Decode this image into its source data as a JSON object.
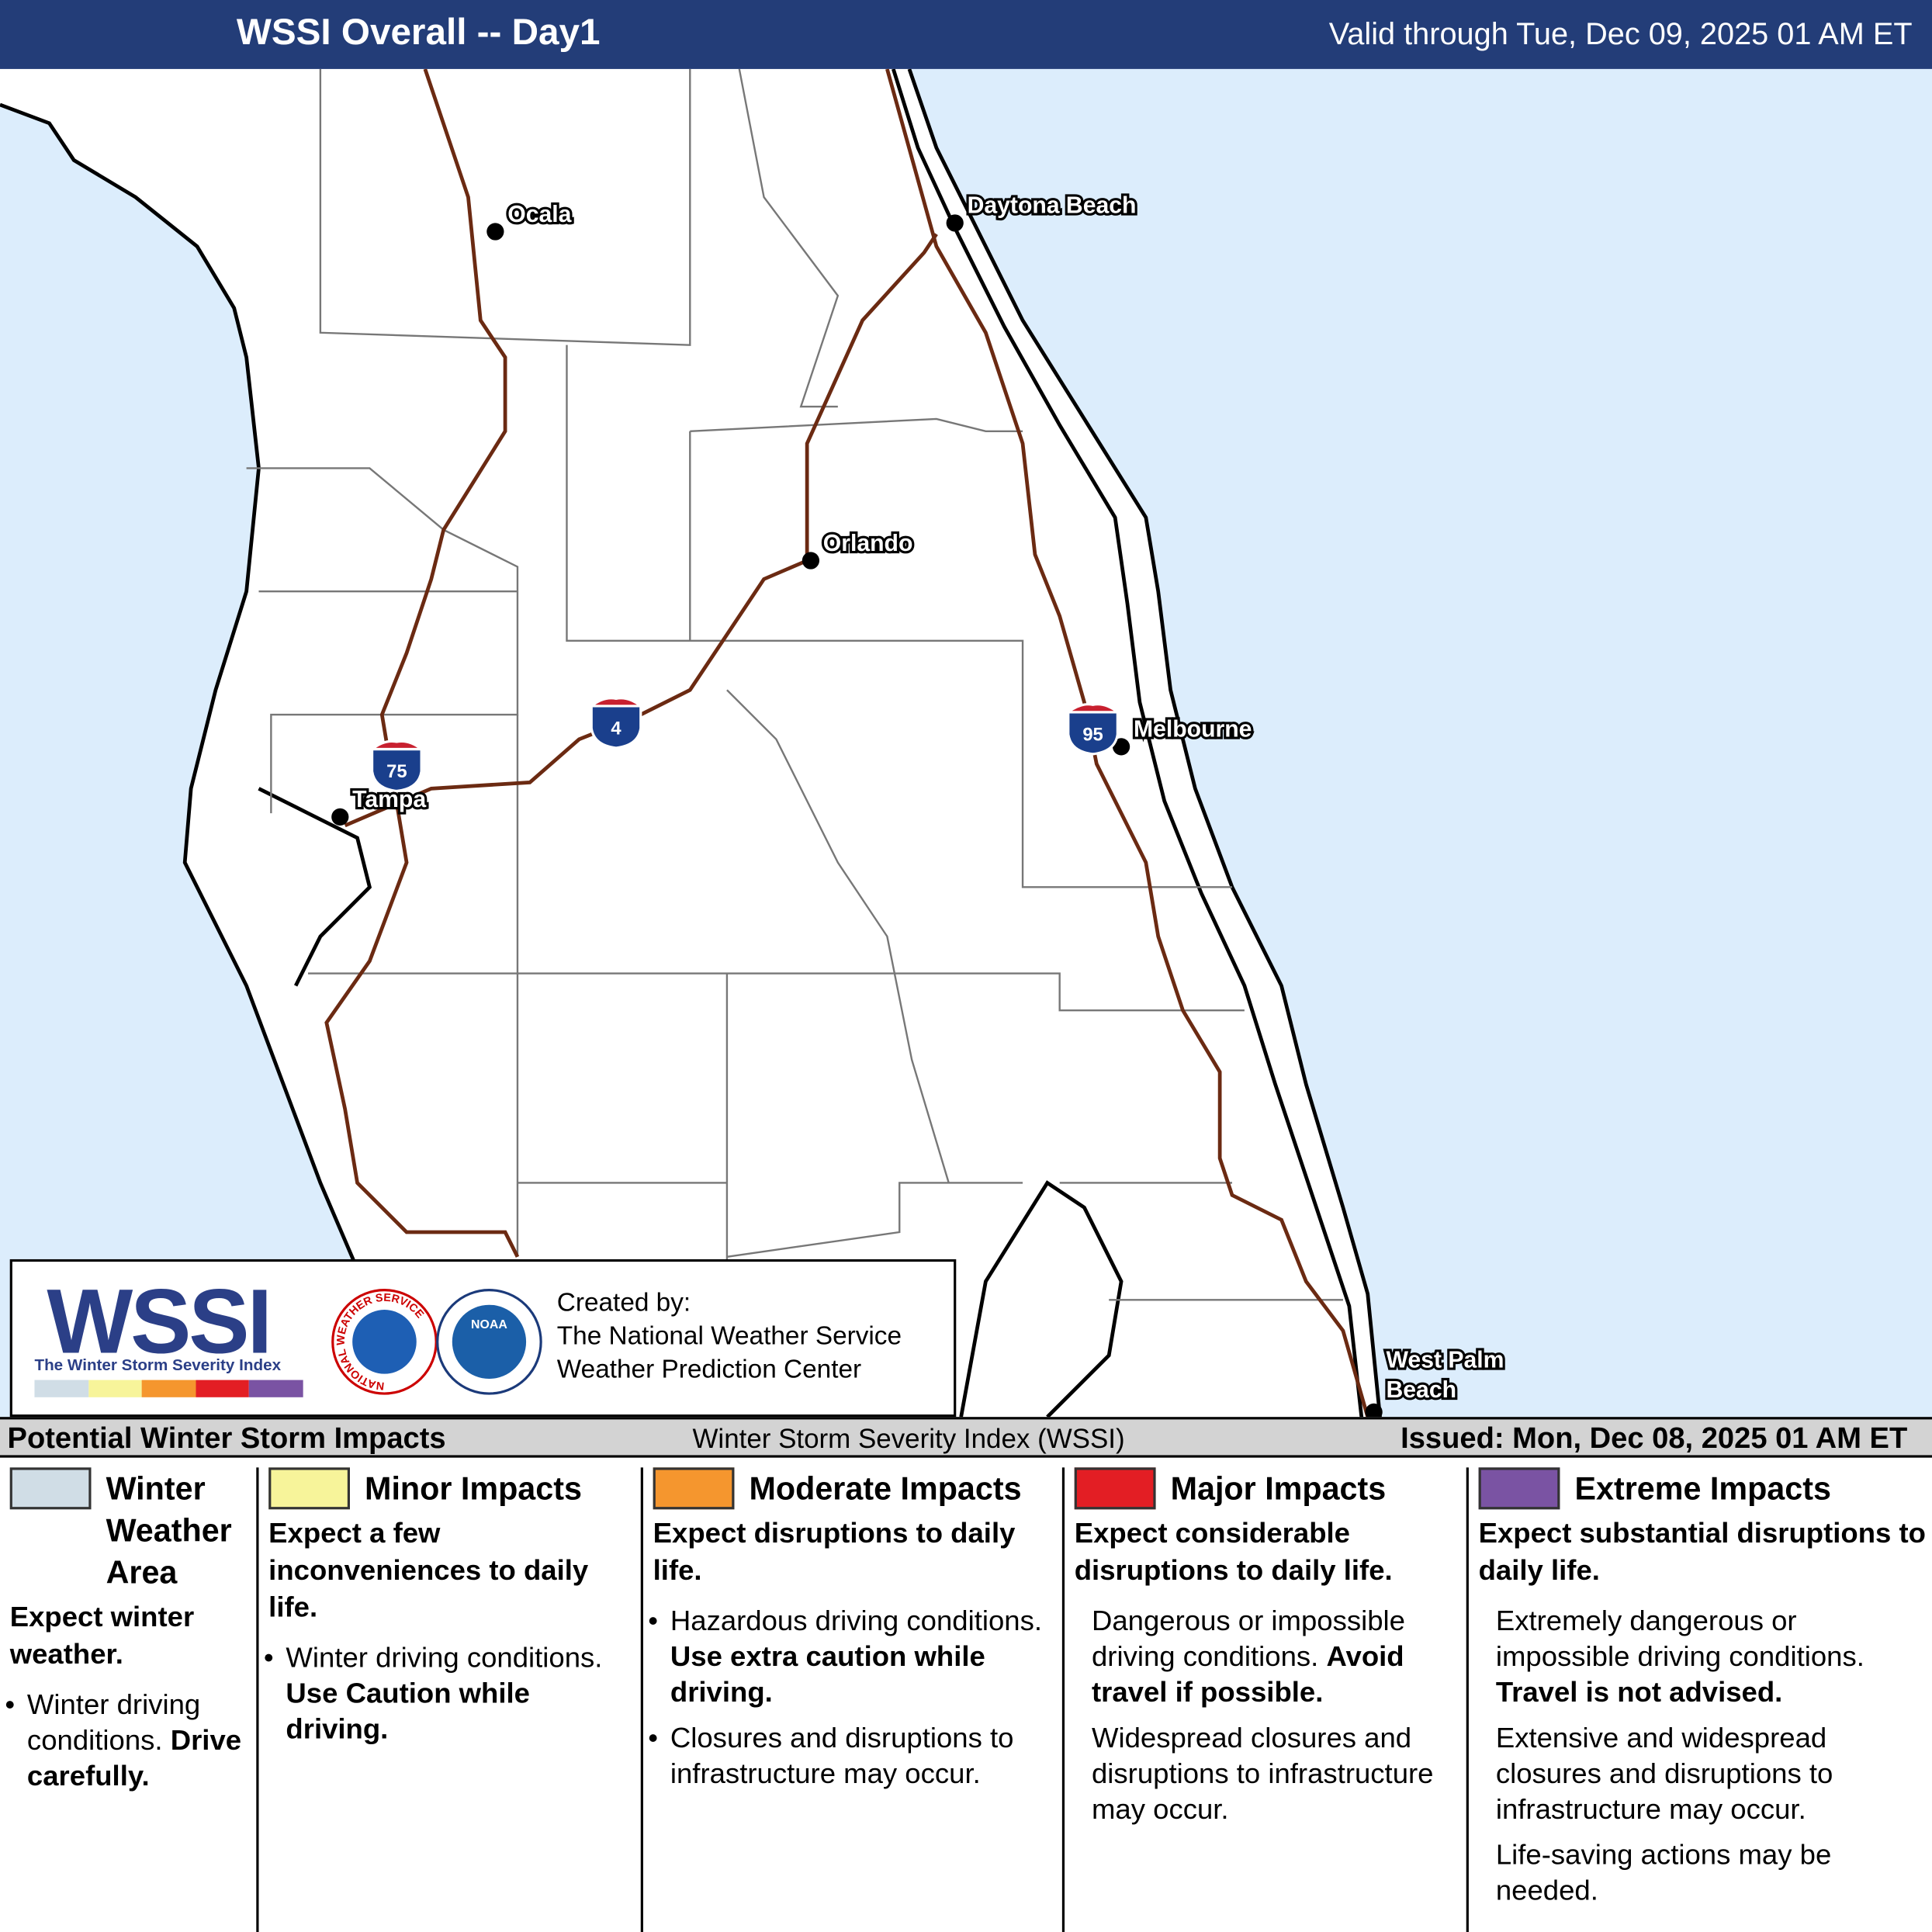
{
  "header": {
    "title": "WSSI Overall -- Day1",
    "valid": "Valid through Tue, Dec 09, 2025 01 AM ET"
  },
  "map": {
    "cities": [
      {
        "lines": [
          "Ocala"
        ]
      },
      {
        "lines": [
          "Daytona Beach"
        ]
      },
      {
        "lines": [
          "Orlando"
        ]
      },
      {
        "lines": [
          "Melbourne"
        ]
      },
      {
        "lines": [
          "Tampa"
        ]
      },
      {
        "lines": [
          "West Palm",
          "Beach"
        ]
      }
    ],
    "interstates": [
      "75",
      "4",
      "95"
    ]
  },
  "credits": {
    "logo": "WSSI",
    "logo_subtitle": "The Winter Storm Severity Index",
    "nws_seal": "NATIONAL WEATHER SERVICE",
    "noaa_seal": "NOAA",
    "lines": [
      "Created by:",
      "The National Weather Service",
      "Weather Prediction Center"
    ]
  },
  "legend": {
    "title": "Potential Winter Storm Impacts",
    "subtitle": "Winter Storm Severity Index (WSSI)",
    "issued": "Issued: Mon, Dec 08, 2025 01 AM ET",
    "columns": [
      {
        "title": "Winter Weather Area",
        "color": "#d0dde6",
        "summary": "Expect winter weather.",
        "bulleted": true,
        "items": [
          {
            "text": "Winter driving conditions.",
            "bold": "Drive carefully."
          }
        ]
      },
      {
        "title": "Minor Impacts",
        "color": "#f7f49a",
        "summary": "Expect a few inconveniences to daily life.",
        "bulleted": true,
        "items": [
          {
            "text": "Winter driving conditions.",
            "bold": "Use Caution while driving."
          }
        ]
      },
      {
        "title": "Moderate Impacts",
        "color": "#f5962e",
        "summary": "Expect disruptions to daily life.",
        "bulleted": true,
        "items": [
          {
            "text": "Hazardous driving conditions.",
            "bold": "Use extra caution while driving."
          },
          {
            "text": "Closures and disruptions to infrastructure may occur."
          }
        ]
      },
      {
        "title": "Major Impacts",
        "color": "#e31e24",
        "summary": "Expect considerable disruptions to daily life.",
        "bulleted": false,
        "items": [
          {
            "text": "Dangerous or impossible driving conditions.",
            "bold": "Avoid travel if possible."
          },
          {
            "text": "Widespread closures and disruptions to infrastructure may occur."
          }
        ]
      },
      {
        "title": "Extreme Impacts",
        "color": "#7a53a3",
        "summary": "Expect substantial disruptions to daily life.",
        "bulleted": false,
        "items": [
          {
            "text": "Extremely dangerous or impossible driving conditions.",
            "bold": "Travel is not advised."
          },
          {
            "text": "Extensive and widespread closures and disruptions to infrastructure may occur."
          },
          {
            "text": "Life-saving actions may be needed."
          }
        ]
      }
    ]
  }
}
